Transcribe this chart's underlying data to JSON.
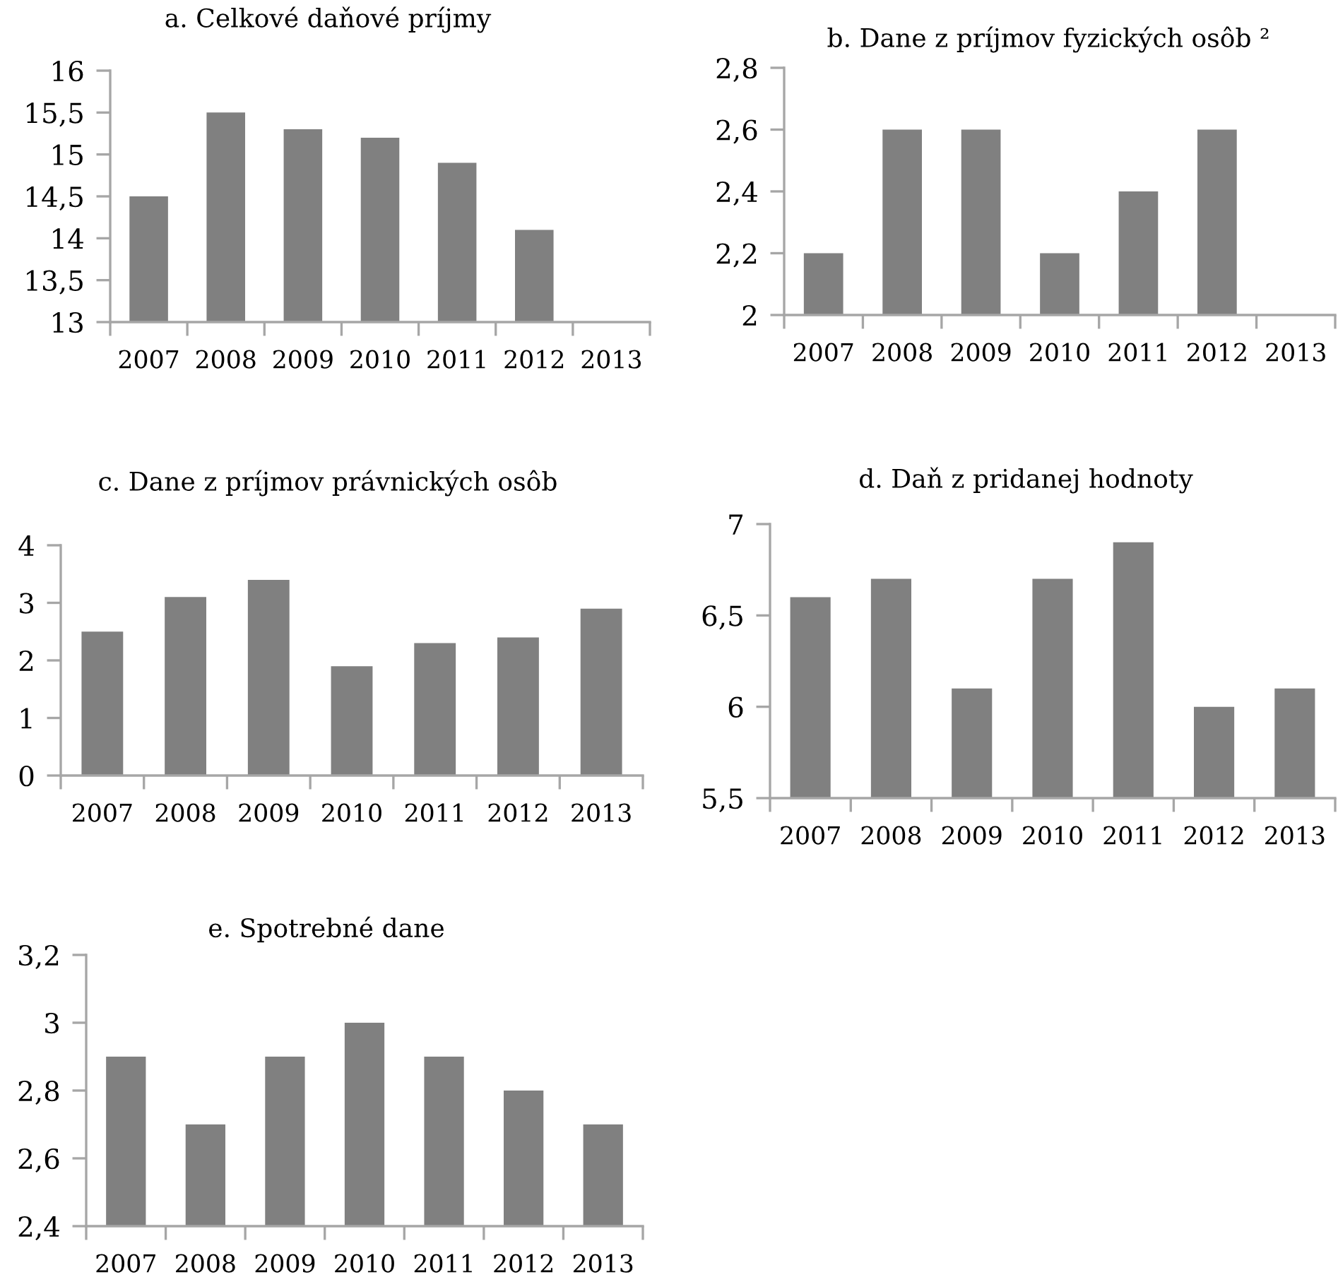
{
  "chart_data": [
    {
      "type": "bar",
      "title": "a. Celkové daňové príjmy",
      "categories": [
        "2007",
        "2008",
        "2009",
        "2010",
        "2011",
        "2012",
        "2013"
      ],
      "values": [
        14.5,
        15.5,
        15.3,
        15.2,
        14.9,
        14.1,
        null
      ],
      "color": "#808080",
      "ylim": [
        13,
        16
      ],
      "yticks": [
        13,
        {
          "value": 13.5,
          "label": "13,5"
        },
        14,
        {
          "value": 14.5,
          "label": "14,5"
        },
        15,
        {
          "value": 15.5,
          "label": "15,5"
        },
        16
      ]
    },
    {
      "type": "bar",
      "title": "b. Dane z príjmov fyzických osôb ²",
      "categories": [
        "2007",
        "2008",
        "2009",
        "2010",
        "2011",
        "2012",
        "2013"
      ],
      "values": [
        2.2,
        2.6,
        2.6,
        2.2,
        2.4,
        2.6,
        null
      ],
      "color": "#808080",
      "ylim": [
        2,
        2.8
      ],
      "yticks": [
        2,
        {
          "value": 2.2,
          "label": "2,2"
        },
        {
          "value": 2.4,
          "label": "2,4"
        },
        {
          "value": 2.6,
          "label": "2,6"
        },
        {
          "value": 2.8,
          "label": "2,8"
        }
      ]
    },
    {
      "type": "bar",
      "title": "c. Dane z príjmov právnických osôb",
      "categories": [
        "2007",
        "2008",
        "2009",
        "2010",
        "2011",
        "2012",
        "2013"
      ],
      "values": [
        2.5,
        3.1,
        3.4,
        1.9,
        2.3,
        2.4,
        2.9
      ],
      "color": "#808080",
      "ylim": [
        0,
        4
      ],
      "yticks": [
        0,
        1,
        2,
        3,
        4
      ]
    },
    {
      "type": "bar",
      "title": "d. Daň z pridanej hodnoty",
      "categories": [
        "2007",
        "2008",
        "2009",
        "2010",
        "2011",
        "2012",
        "2013"
      ],
      "values": [
        6.6,
        6.7,
        6.1,
        6.7,
        6.9,
        6.0,
        6.1
      ],
      "color": "#808080",
      "ylim": [
        5.5,
        7
      ],
      "yticks": [
        {
          "value": 5.5,
          "label": "5,5"
        },
        6,
        {
          "value": 6.5,
          "label": "6,5"
        },
        7
      ]
    },
    {
      "type": "bar",
      "title": "e. Spotrebné dane",
      "categories": [
        "2007",
        "2008",
        "2009",
        "2010",
        "2011",
        "2012",
        "2013"
      ],
      "values": [
        2.9,
        2.7,
        2.9,
        3.0,
        2.9,
        2.8,
        2.7
      ],
      "color": "#808080",
      "ylim": [
        2.4,
        3.2
      ],
      "yticks": [
        {
          "value": 2.4,
          "label": "2,4"
        },
        {
          "value": 2.6,
          "label": "2,6"
        },
        {
          "value": 2.8,
          "label": "2,8"
        },
        3,
        {
          "value": 3.2,
          "label": "3,2"
        }
      ]
    }
  ]
}
